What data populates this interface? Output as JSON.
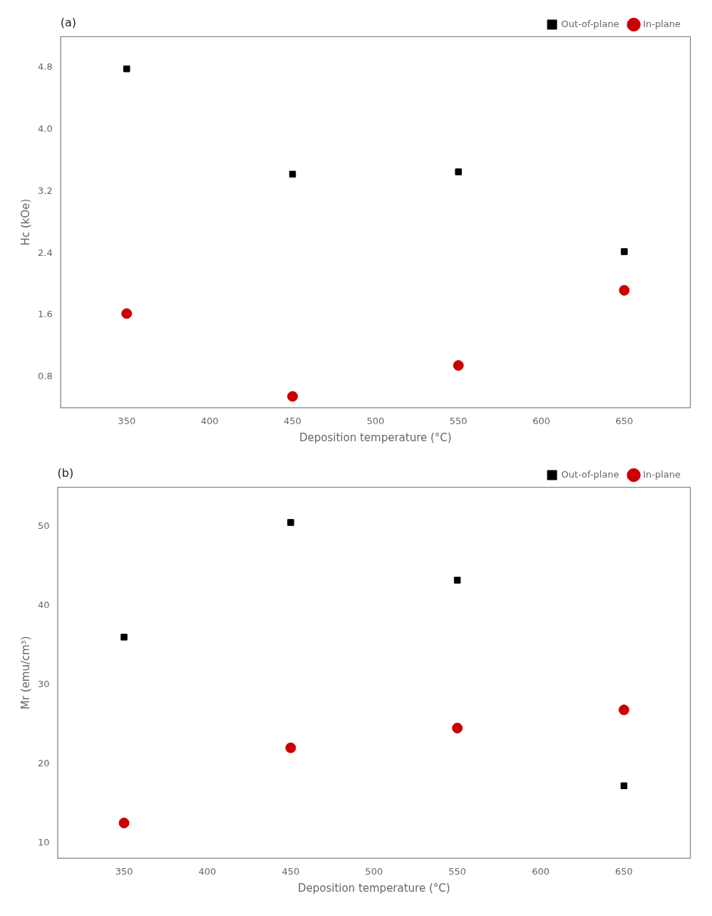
{
  "chart_data": [
    {
      "type": "scatter",
      "annotation": "(a)",
      "xlabel": "Deposition temperature (°C)",
      "ylabel": "Hc (kOe)",
      "x": [
        350,
        450,
        550,
        650
      ],
      "series": [
        {
          "name": "Out-of-plane",
          "color": "#000000",
          "marker": "square",
          "values": [
            4.78,
            3.42,
            3.45,
            2.42
          ]
        },
        {
          "name": "In-plane",
          "color": "#cc0000",
          "marker": "circle",
          "values": [
            1.62,
            0.55,
            0.95,
            1.92
          ]
        }
      ],
      "xlim": [
        310,
        690
      ],
      "xticks": [
        350,
        400,
        450,
        500,
        550,
        600,
        650
      ],
      "ylim": [
        0.4,
        5.2
      ],
      "yticks": [
        0.8,
        1.6,
        2.4,
        3.2,
        {
          "value": 4.0,
          "label": "4.0"
        },
        4.8
      ],
      "legend": "upper right",
      "grid": false
    },
    {
      "type": "scatter",
      "annotation": "(b)",
      "xlabel": "Deposition temperature (°C)",
      "ylabel": "Mr (emu/cm³)",
      "x": [
        350,
        450,
        550,
        650
      ],
      "series": [
        {
          "name": "Out-of-plane",
          "color": "#000000",
          "marker": "square",
          "values": [
            36.0,
            50.5,
            43.2,
            17.2
          ]
        },
        {
          "name": "In-plane",
          "color": "#cc0000",
          "marker": "circle",
          "values": [
            12.5,
            22.0,
            24.5,
            26.8
          ]
        }
      ],
      "xlim": [
        310,
        690
      ],
      "xticks": [
        350,
        400,
        450,
        500,
        550,
        600,
        650
      ],
      "ylim": [
        8,
        55
      ],
      "yticks": [
        10,
        20,
        30,
        40,
        50
      ],
      "legend": "upper right",
      "grid": false
    }
  ]
}
